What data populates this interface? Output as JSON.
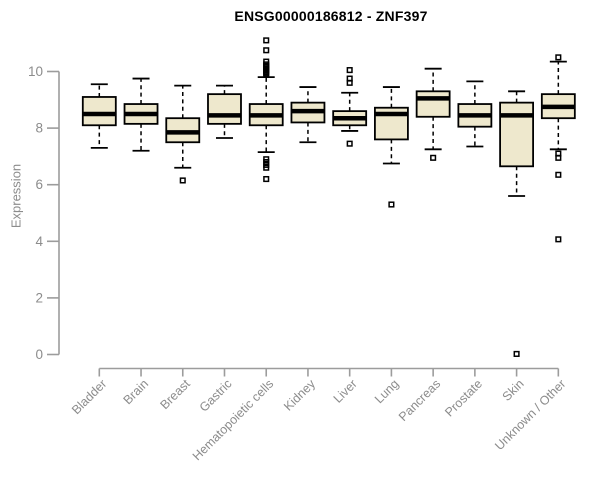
{
  "header": {
    "title": "ENSG00000186812 - ZNF397"
  },
  "chart_data": {
    "type": "boxplot",
    "title": "ENSG00000186812 - ZNF397",
    "xlabel": "",
    "ylabel": "Expression",
    "ylim": [
      0,
      11.3
    ],
    "yticks": [
      0,
      2,
      4,
      6,
      8,
      10
    ],
    "grid": false,
    "legend": "none",
    "categories": [
      "Bladder",
      "Brain",
      "Breast",
      "Gastric",
      "Hematopoietic cells",
      "Kidney",
      "Liver",
      "Lung",
      "Pancreas",
      "Prostate",
      "Skin",
      "Unknown / Other"
    ],
    "series": [
      {
        "name": "Bladder",
        "whisker_low": 7.3,
        "q1": 8.1,
        "median": 8.5,
        "q3": 9.1,
        "whisker_high": 9.55,
        "outliers": []
      },
      {
        "name": "Brain",
        "whisker_low": 7.2,
        "q1": 8.15,
        "median": 8.5,
        "q3": 8.85,
        "whisker_high": 9.75,
        "outliers": []
      },
      {
        "name": "Breast",
        "whisker_low": 6.6,
        "q1": 7.5,
        "median": 7.85,
        "q3": 8.35,
        "whisker_high": 9.5,
        "outliers": [
          6.15
        ]
      },
      {
        "name": "Gastric",
        "whisker_low": 7.65,
        "q1": 8.15,
        "median": 8.45,
        "q3": 9.2,
        "whisker_high": 9.5,
        "outliers": []
      },
      {
        "name": "Hematopoietic cells",
        "whisker_low": 7.15,
        "q1": 8.1,
        "median": 8.45,
        "q3": 8.85,
        "whisker_high": 9.8,
        "outliers": [
          11.1,
          10.75,
          10.35,
          10.25,
          10.2,
          10.15,
          10.1,
          10.05,
          10.0,
          9.95,
          9.9,
          6.9,
          6.8,
          6.7,
          6.6,
          6.2
        ]
      },
      {
        "name": "Kidney",
        "whisker_low": 7.5,
        "q1": 8.2,
        "median": 8.6,
        "q3": 8.9,
        "whisker_high": 9.45,
        "outliers": []
      },
      {
        "name": "Liver",
        "whisker_low": 7.9,
        "q1": 8.1,
        "median": 8.35,
        "q3": 8.6,
        "whisker_high": 9.25,
        "outliers": [
          10.05,
          9.75,
          9.6,
          7.45
        ]
      },
      {
        "name": "Lung",
        "whisker_low": 6.75,
        "q1": 7.6,
        "median": 8.5,
        "q3": 8.72,
        "whisker_high": 9.45,
        "outliers": [
          5.3
        ]
      },
      {
        "name": "Pancreas",
        "whisker_low": 7.25,
        "q1": 8.4,
        "median": 9.05,
        "q3": 9.3,
        "whisker_high": 10.1,
        "outliers": [
          6.95
        ]
      },
      {
        "name": "Prostate",
        "whisker_low": 7.35,
        "q1": 8.05,
        "median": 8.45,
        "q3": 8.85,
        "whisker_high": 9.65,
        "outliers": []
      },
      {
        "name": "Skin",
        "whisker_low": 5.6,
        "q1": 6.65,
        "median": 8.45,
        "q3": 8.9,
        "whisker_high": 9.3,
        "outliers": [
          0.02
        ]
      },
      {
        "name": "Unknown / Other",
        "whisker_low": 7.25,
        "q1": 8.35,
        "median": 8.75,
        "q3": 9.2,
        "whisker_high": 10.35,
        "outliers": [
          10.5,
          7.1,
          6.95,
          6.35,
          4.07
        ]
      }
    ]
  },
  "style": {
    "box_fill": "#EEE8CD",
    "box_border": "#000000",
    "median_color": "#000000",
    "whisker_color": "#000000",
    "outlier_shape": "open-square",
    "axis_color": "#9c9c9c",
    "tick_text_color": "#8c8c8c",
    "title_color": "#000000",
    "background": "#ffffff"
  }
}
